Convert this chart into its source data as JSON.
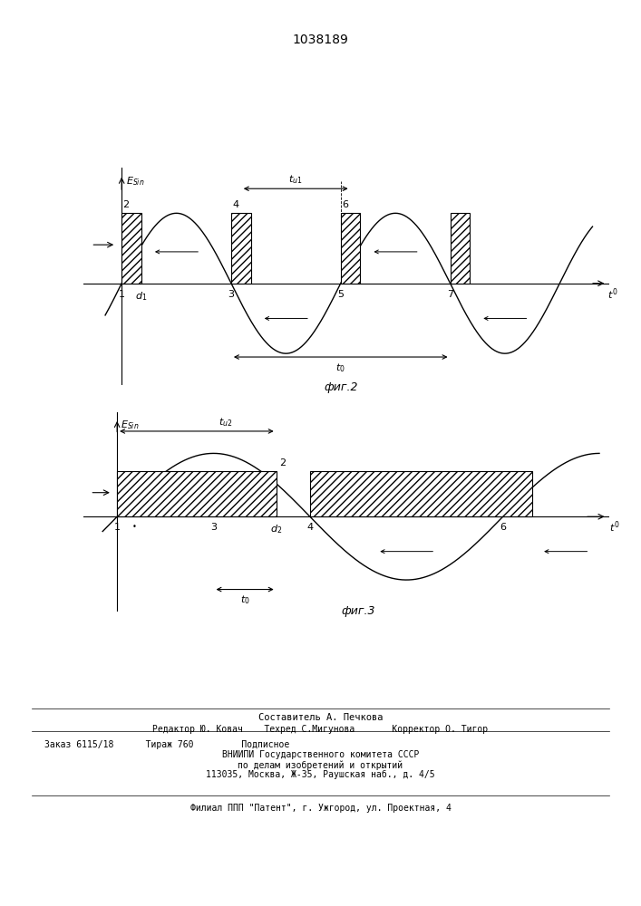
{
  "title": "1038189",
  "fig2_label": "фиг.2",
  "fig3_label": "фиг.3",
  "footer_lines": [
    "Составитель А. Печкова",
    "Редактор Ю. Ковач    Техред С.Мигунова       Корректор О. Тигор",
    "Заказ 6115/18      Тираж 760         Подписное",
    "ВНИИПИ Государственного комитета СССР",
    "по делам изобретений и открытий",
    "113035, Москва, Ж-35, Раушская наб., д. 4/5",
    "Филиал ППП \"Патент\", г. Ужгород, ул. Проектная, 4"
  ]
}
